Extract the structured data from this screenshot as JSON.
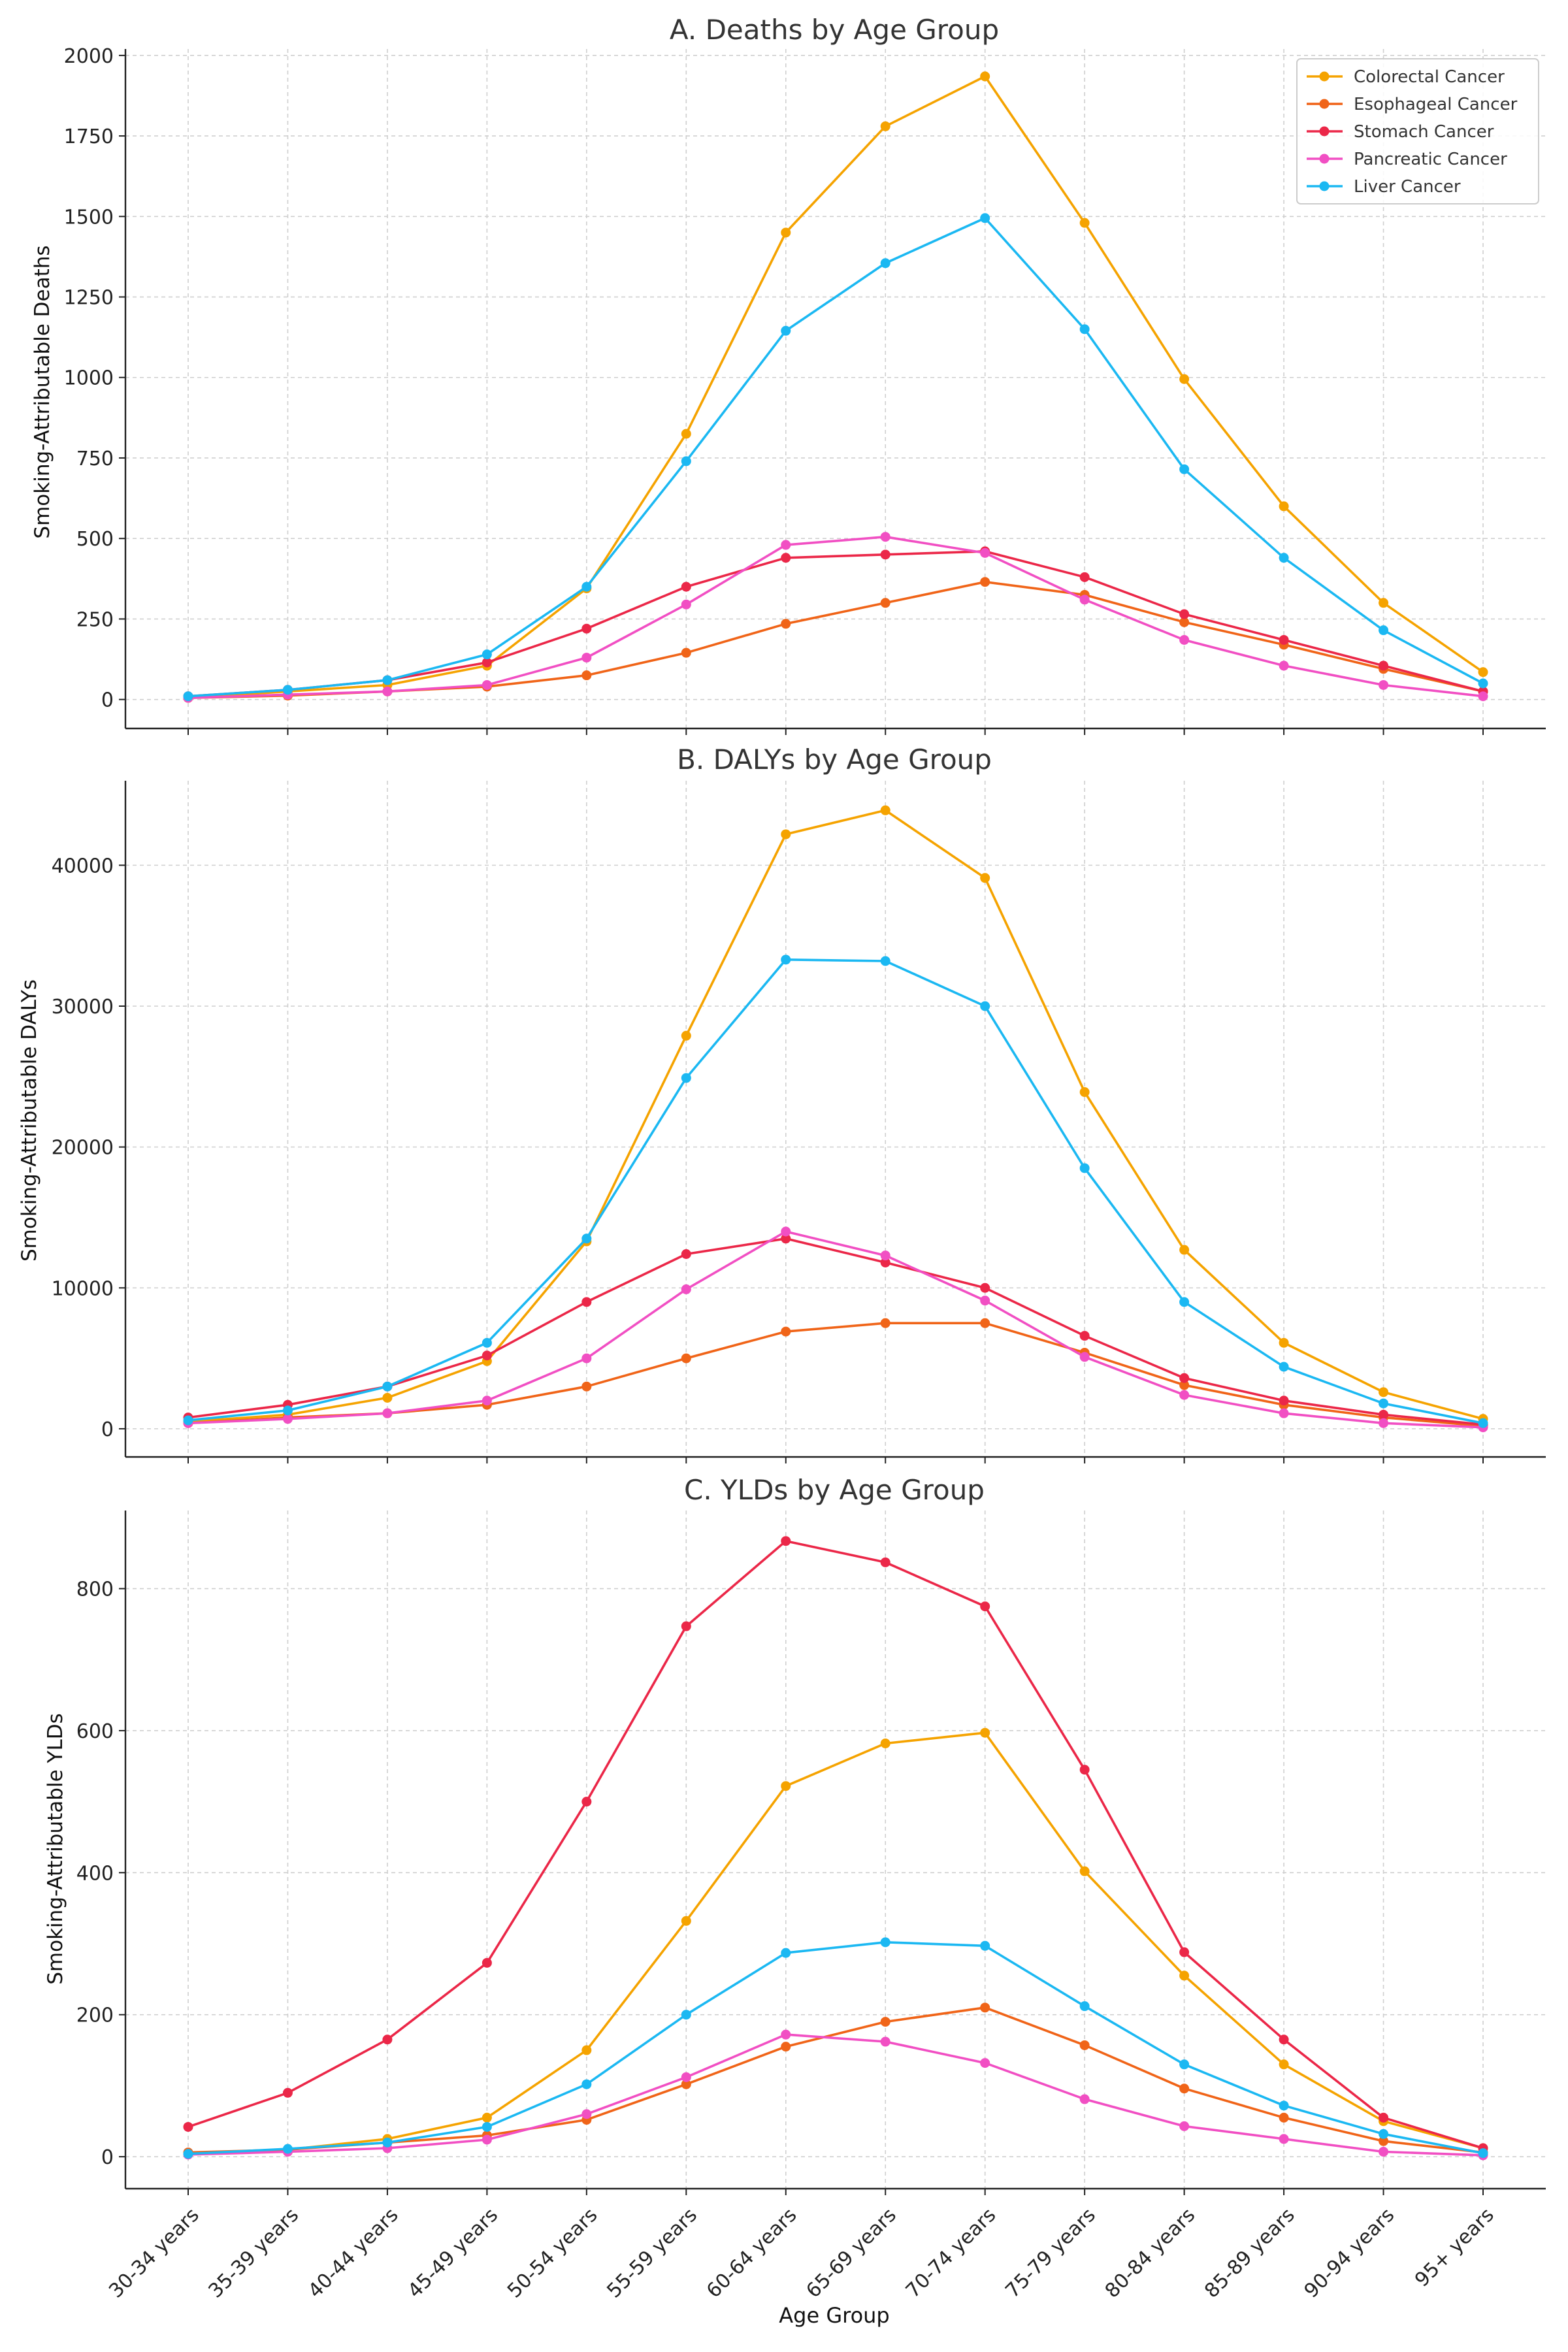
{
  "xlabel": "Age Group",
  "categories": [
    "30-34 years",
    "35-39 years",
    "40-44 years",
    "45-49 years",
    "50-54 years",
    "55-59 years",
    "60-64 years",
    "65-69 years",
    "70-74 years",
    "75-79 years",
    "80-84 years",
    "85-89 years",
    "90-94 years",
    "95+ years"
  ],
  "legend": [
    {
      "name": "Colorectal Cancer",
      "color": "#F5A300"
    },
    {
      "name": "Esophageal Cancer",
      "color": "#F06418"
    },
    {
      "name": "Stomach Cancer",
      "color": "#EB2748"
    },
    {
      "name": "Pancreatic Cancer",
      "color": "#F14FC3"
    },
    {
      "name": "Liver Cancer",
      "color": "#1BB8F2"
    }
  ],
  "chart_data": [
    {
      "type": "line",
      "title": "A. Deaths by Age Group",
      "ylabel": "Smoking-Attributable Deaths",
      "ylim": [
        -90,
        2020
      ],
      "yticks": [
        0,
        250,
        500,
        750,
        1000,
        1250,
        1500,
        1750,
        2000
      ],
      "grid": true,
      "legend_position": "top-right",
      "series": [
        {
          "name": "Colorectal Cancer",
          "values": [
            5,
            25,
            45,
            105,
            345,
            825,
            1450,
            1780,
            1935,
            1480,
            995,
            600,
            300,
            85
          ]
        },
        {
          "name": "Esophageal Cancer",
          "values": [
            5,
            12,
            25,
            40,
            75,
            145,
            235,
            300,
            365,
            325,
            240,
            170,
            95,
            25
          ]
        },
        {
          "name": "Stomach Cancer",
          "values": [
            10,
            30,
            60,
            115,
            220,
            350,
            440,
            450,
            460,
            380,
            265,
            185,
            105,
            25
          ]
        },
        {
          "name": "Pancreatic Cancer",
          "values": [
            5,
            15,
            25,
            45,
            130,
            295,
            480,
            505,
            455,
            310,
            185,
            105,
            45,
            10
          ]
        },
        {
          "name": "Liver Cancer",
          "values": [
            10,
            30,
            60,
            140,
            350,
            740,
            1145,
            1355,
            1495,
            1150,
            715,
            440,
            215,
            50
          ]
        }
      ]
    },
    {
      "type": "line",
      "title": "B. DALYs by Age Group",
      "ylabel": "Smoking-Attributable DALYs",
      "ylim": [
        -2000,
        46000
      ],
      "yticks": [
        0,
        10000,
        20000,
        30000,
        40000
      ],
      "grid": true,
      "series": [
        {
          "name": "Colorectal Cancer",
          "values": [
            500,
            1000,
            2200,
            4800,
            13300,
            27900,
            42200,
            43900,
            39100,
            23900,
            12700,
            6100,
            2600,
            700
          ]
        },
        {
          "name": "Esophageal Cancer",
          "values": [
            400,
            800,
            1100,
            1700,
            3000,
            5000,
            6900,
            7500,
            7500,
            5400,
            3100,
            1700,
            800,
            200
          ]
        },
        {
          "name": "Stomach Cancer",
          "values": [
            800,
            1700,
            3000,
            5200,
            9000,
            12400,
            13500,
            11800,
            10000,
            6600,
            3600,
            2000,
            1000,
            300
          ]
        },
        {
          "name": "Pancreatic Cancer",
          "values": [
            400,
            700,
            1100,
            2000,
            5000,
            9900,
            14000,
            12300,
            9100,
            5100,
            2400,
            1100,
            400,
            100
          ]
        },
        {
          "name": "Liver Cancer",
          "values": [
            600,
            1300,
            3000,
            6100,
            13500,
            24900,
            33300,
            33200,
            30000,
            18500,
            9000,
            4400,
            1800,
            400
          ]
        }
      ]
    },
    {
      "type": "line",
      "title": "C. YLDs by Age Group",
      "ylabel": "Smoking-Attributable YLDs",
      "ylim": [
        -45,
        910
      ],
      "yticks": [
        0,
        200,
        400,
        600,
        800
      ],
      "grid": true,
      "series": [
        {
          "name": "Colorectal Cancer",
          "values": [
            5,
            10,
            25,
            55,
            150,
            332,
            522,
            582,
            597,
            402,
            255,
            130,
            50,
            12
          ]
        },
        {
          "name": "Esophageal Cancer",
          "values": [
            6,
            10,
            20,
            30,
            52,
            102,
            155,
            190,
            210,
            157,
            96,
            55,
            22,
            6
          ]
        },
        {
          "name": "Stomach Cancer",
          "values": [
            42,
            90,
            165,
            273,
            500,
            747,
            867,
            837,
            775,
            545,
            288,
            165,
            55,
            12
          ]
        },
        {
          "name": "Pancreatic Cancer",
          "values": [
            3,
            7,
            12,
            24,
            60,
            112,
            172,
            162,
            132,
            81,
            43,
            25,
            7,
            2
          ]
        },
        {
          "name": "Liver Cancer",
          "values": [
            4,
            11,
            20,
            42,
            102,
            200,
            287,
            302,
            297,
            212,
            130,
            72,
            32,
            5
          ]
        }
      ]
    }
  ]
}
